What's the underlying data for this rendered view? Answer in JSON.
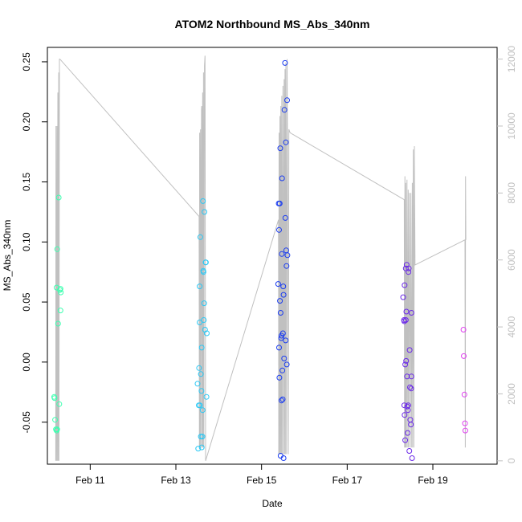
{
  "chart_data": {
    "type": "scatter",
    "title": "ATOM2 Northbound MS_Abs_340nm",
    "xlabel": "Date",
    "ylabel": "MS_Abs_340nm",
    "xlim": [
      "2023-02-10T00:00",
      "2023-02-20T12:00"
    ],
    "ylim": [
      -0.085,
      0.262
    ],
    "y2lim": [
      -100,
      12350
    ],
    "x_ticks": [
      {
        "value": "2023-02-11T00:00",
        "label": "Feb 11"
      },
      {
        "value": "2023-02-13T00:00",
        "label": "Feb 13"
      },
      {
        "value": "2023-02-15T00:00",
        "label": "Feb 15"
      },
      {
        "value": "2023-02-17T00:00",
        "label": "Feb 17"
      },
      {
        "value": "2023-02-19T00:00",
        "label": "Feb 19"
      }
    ],
    "y_ticks": [
      "-0.05",
      "0.00",
      "0.05",
      "0.10",
      "0.15",
      "0.20",
      "0.25"
    ],
    "y2_ticks": [
      "0",
      "2000",
      "4000",
      "6000",
      "8000",
      "10000",
      "12000"
    ],
    "grid": false,
    "secondary_series": {
      "color": "#c0c0c0",
      "points": [
        [
          "2023-02-10T04:40",
          0
        ],
        [
          "2023-02-10T04:50",
          10000
        ],
        [
          "2023-02-10T05:00",
          0
        ],
        [
          "2023-02-10T05:20",
          10000
        ],
        [
          "2023-02-10T05:30",
          0
        ],
        [
          "2023-02-10T05:50",
          11000
        ],
        [
          "2023-02-10T06:00",
          0
        ],
        [
          "2023-02-10T06:20",
          11600
        ],
        [
          "2023-02-10T06:30",
          0
        ],
        [
          "2023-02-10T06:45",
          12000
        ],
        [
          "2023-02-10T07:00",
          12000
        ],
        [
          "2023-02-13T13:00",
          7300
        ],
        [
          "2023-02-13T13:10",
          400
        ],
        [
          "2023-02-13T13:20",
          9800
        ],
        [
          "2023-02-13T13:30",
          400
        ],
        [
          "2023-02-13T13:50",
          9900
        ],
        [
          "2023-02-13T14:00",
          400
        ],
        [
          "2023-02-13T14:20",
          10500
        ],
        [
          "2023-02-13T14:30",
          10600
        ],
        [
          "2023-02-13T14:40",
          400
        ],
        [
          "2023-02-13T15:00",
          11000
        ],
        [
          "2023-02-13T15:10",
          400
        ],
        [
          "2023-02-13T15:30",
          11600
        ],
        [
          "2023-02-13T15:40",
          400
        ],
        [
          "2023-02-13T16:00",
          11800
        ],
        [
          "2023-02-13T16:20",
          12100
        ],
        [
          "2023-02-13T16:40",
          0
        ],
        [
          "2023-02-15T09:30",
          7200
        ],
        [
          "2023-02-15T09:40",
          200
        ],
        [
          "2023-02-15T09:50",
          9800
        ],
        [
          "2023-02-15T10:00",
          200
        ],
        [
          "2023-02-15T10:20",
          10300
        ],
        [
          "2023-02-15T10:30",
          200
        ],
        [
          "2023-02-15T10:50",
          10600
        ],
        [
          "2023-02-15T11:00",
          200
        ],
        [
          "2023-02-15T11:20",
          10900
        ],
        [
          "2023-02-15T11:30",
          200
        ],
        [
          "2023-02-15T12:00",
          11200
        ],
        [
          "2023-02-15T12:10",
          200
        ],
        [
          "2023-02-15T12:40",
          11400
        ],
        [
          "2023-02-15T12:50",
          200
        ],
        [
          "2023-02-15T13:10",
          11700
        ],
        [
          "2023-02-15T13:20",
          200
        ],
        [
          "2023-02-15T13:40",
          11900
        ],
        [
          "2023-02-15T14:00",
          200
        ],
        [
          "2023-02-15T14:20",
          12000
        ],
        [
          "2023-02-15T14:30",
          9800
        ],
        [
          "2023-02-15T15:00",
          200
        ],
        [
          "2023-02-15T15:20",
          9900
        ],
        [
          "2023-02-15T16:00",
          9800
        ],
        [
          "2023-02-18T08:00",
          7800
        ],
        [
          "2023-02-18T08:10",
          400
        ],
        [
          "2023-02-18T08:20",
          8500
        ],
        [
          "2023-02-18T08:30",
          400
        ],
        [
          "2023-02-18T08:50",
          8300
        ],
        [
          "2023-02-18T09:00",
          400
        ],
        [
          "2023-02-18T09:30",
          8400
        ],
        [
          "2023-02-18T09:40",
          400
        ],
        [
          "2023-02-18T10:10",
          8100
        ],
        [
          "2023-02-18T10:20",
          400
        ],
        [
          "2023-02-18T10:50",
          8000
        ],
        [
          "2023-02-18T11:10",
          400
        ],
        [
          "2023-02-18T11:40",
          8000
        ],
        [
          "2023-02-18T12:00",
          400
        ],
        [
          "2023-02-18T12:30",
          8300
        ],
        [
          "2023-02-18T12:40",
          400
        ],
        [
          "2023-02-18T13:00",
          9300
        ],
        [
          "2023-02-18T13:20",
          400
        ],
        [
          "2023-02-18T13:40",
          9400
        ],
        [
          "2023-02-18T14:00",
          5850
        ],
        [
          "2023-02-19T18:00",
          6600
        ],
        [
          "2023-02-19T18:10",
          400
        ],
        [
          "2023-02-19T18:20",
          8500
        ],
        [
          "2023-02-19T18:30",
          6600
        ]
      ]
    },
    "points": [
      {
        "x": "2023-02-10T03:50",
        "y": -0.029,
        "c": "#3dffb0"
      },
      {
        "x": "2023-02-10T04:00",
        "y": -0.03,
        "c": "#3dffb0"
      },
      {
        "x": "2023-02-10T04:20",
        "y": -0.048,
        "c": "#3dffb0"
      },
      {
        "x": "2023-02-10T04:50",
        "y": -0.056,
        "c": "#3dffb0"
      },
      {
        "x": "2023-02-10T05:10",
        "y": -0.057,
        "c": "#3dffb0"
      },
      {
        "x": "2023-02-10T05:30",
        "y": -0.056,
        "c": "#3dffb0"
      },
      {
        "x": "2023-02-10T05:10",
        "y": 0.062,
        "c": "#3dffb0"
      },
      {
        "x": "2023-02-10T05:30",
        "y": 0.094,
        "c": "#3dffb0"
      },
      {
        "x": "2023-02-10T06:00",
        "y": 0.032,
        "c": "#3dffb0"
      },
      {
        "x": "2023-02-10T06:20",
        "y": 0.137,
        "c": "#3dffb0"
      },
      {
        "x": "2023-02-10T06:40",
        "y": -0.035,
        "c": "#3dffb0"
      },
      {
        "x": "2023-02-10T07:00",
        "y": 0.06,
        "c": "#3dffb0"
      },
      {
        "x": "2023-02-10T07:20",
        "y": 0.061,
        "c": "#3dffb0"
      },
      {
        "x": "2023-02-10T07:20",
        "y": 0.043,
        "c": "#3dffb0"
      },
      {
        "x": "2023-02-10T07:30",
        "y": 0.058,
        "c": "#3dffb0"
      },
      {
        "x": "2023-02-13T12:10",
        "y": -0.018,
        "c": "#2ac8f5"
      },
      {
        "x": "2023-02-13T12:30",
        "y": -0.072,
        "c": "#2ac8f5"
      },
      {
        "x": "2023-02-13T12:50",
        "y": -0.036,
        "c": "#2ac8f5"
      },
      {
        "x": "2023-02-13T13:00",
        "y": -0.005,
        "c": "#2ac8f5"
      },
      {
        "x": "2023-02-13T13:20",
        "y": 0.063,
        "c": "#2ac8f5"
      },
      {
        "x": "2023-02-13T13:20",
        "y": 0.033,
        "c": "#2ac8f5"
      },
      {
        "x": "2023-02-13T13:30",
        "y": -0.036,
        "c": "#2ac8f5"
      },
      {
        "x": "2023-02-13T13:40",
        "y": 0.104,
        "c": "#2ac8f5"
      },
      {
        "x": "2023-02-13T14:00",
        "y": -0.01,
        "c": "#2ac8f5"
      },
      {
        "x": "2023-02-13T14:00",
        "y": -0.062,
        "c": "#2ac8f5"
      },
      {
        "x": "2023-02-13T14:20",
        "y": -0.024,
        "c": "#2ac8f5"
      },
      {
        "x": "2023-02-13T14:30",
        "y": 0.012,
        "c": "#2ac8f5"
      },
      {
        "x": "2023-02-13T14:30",
        "y": -0.071,
        "c": "#2ac8f5"
      },
      {
        "x": "2023-02-13T14:50",
        "y": -0.062,
        "c": "#2ac8f5"
      },
      {
        "x": "2023-02-13T15:00",
        "y": -0.04,
        "c": "#2ac8f5"
      },
      {
        "x": "2023-02-13T15:10",
        "y": 0.134,
        "c": "#2ac8f5"
      },
      {
        "x": "2023-02-13T15:20",
        "y": 0.076,
        "c": "#2ac8f5"
      },
      {
        "x": "2023-02-13T15:30",
        "y": 0.075,
        "c": "#2ac8f5"
      },
      {
        "x": "2023-02-13T15:40",
        "y": 0.035,
        "c": "#2ac8f5"
      },
      {
        "x": "2023-02-13T15:50",
        "y": 0.049,
        "c": "#2ac8f5"
      },
      {
        "x": "2023-02-13T16:00",
        "y": 0.125,
        "c": "#2ac8f5"
      },
      {
        "x": "2023-02-13T16:20",
        "y": 0.027,
        "c": "#2ac8f5"
      },
      {
        "x": "2023-02-13T16:40",
        "y": 0.083,
        "c": "#2ac8f5"
      },
      {
        "x": "2023-02-13T16:50",
        "y": 0.083,
        "c": "#2ac8f5"
      },
      {
        "x": "2023-02-13T17:10",
        "y": -0.029,
        "c": "#2ac8f5"
      },
      {
        "x": "2023-02-13T17:20",
        "y": 0.024,
        "c": "#2ac8f5"
      },
      {
        "x": "2023-02-15T09:20",
        "y": 0.065,
        "c": "#1a3cf0"
      },
      {
        "x": "2023-02-15T09:40",
        "y": 0.132,
        "c": "#1a3cf0"
      },
      {
        "x": "2023-02-15T09:50",
        "y": 0.11,
        "c": "#1a3cf0"
      },
      {
        "x": "2023-02-15T09:50",
        "y": 0.012,
        "c": "#1a3cf0"
      },
      {
        "x": "2023-02-15T10:00",
        "y": -0.013,
        "c": "#1a3cf0"
      },
      {
        "x": "2023-02-15T10:10",
        "y": 0.132,
        "c": "#1a3cf0"
      },
      {
        "x": "2023-02-15T10:20",
        "y": 0.051,
        "c": "#1a3cf0"
      },
      {
        "x": "2023-02-15T10:30",
        "y": 0.178,
        "c": "#1a3cf0"
      },
      {
        "x": "2023-02-15T10:40",
        "y": 0.041,
        "c": "#1a3cf0"
      },
      {
        "x": "2023-02-15T10:40",
        "y": -0.078,
        "c": "#1a3cf0"
      },
      {
        "x": "2023-02-15T11:00",
        "y": 0.02,
        "c": "#1a3cf0"
      },
      {
        "x": "2023-02-15T11:10",
        "y": 0.022,
        "c": "#1a3cf0"
      },
      {
        "x": "2023-02-15T11:10",
        "y": -0.032,
        "c": "#1a3cf0"
      },
      {
        "x": "2023-02-15T11:20",
        "y": 0.09,
        "c": "#1a3cf0"
      },
      {
        "x": "2023-02-15T11:30",
        "y": 0.153,
        "c": "#1a3cf0"
      },
      {
        "x": "2023-02-15T11:40",
        "y": -0.007,
        "c": "#1a3cf0"
      },
      {
        "x": "2023-02-15T11:50",
        "y": -0.031,
        "c": "#1a3cf0"
      },
      {
        "x": "2023-02-15T12:00",
        "y": 0.024,
        "c": "#1a3cf0"
      },
      {
        "x": "2023-02-15T12:10",
        "y": 0.063,
        "c": "#1a3cf0"
      },
      {
        "x": "2023-02-15T12:20",
        "y": 0.056,
        "c": "#1a3cf0"
      },
      {
        "x": "2023-02-15T12:20",
        "y": -0.08,
        "c": "#1a3cf0"
      },
      {
        "x": "2023-02-15T12:40",
        "y": 0.003,
        "c": "#1a3cf0"
      },
      {
        "x": "2023-02-15T12:50",
        "y": 0.21,
        "c": "#1a3cf0"
      },
      {
        "x": "2023-02-15T13:10",
        "y": 0.249,
        "c": "#1a3cf0"
      },
      {
        "x": "2023-02-15T13:20",
        "y": 0.12,
        "c": "#1a3cf0"
      },
      {
        "x": "2023-02-15T13:30",
        "y": 0.018,
        "c": "#1a3cf0"
      },
      {
        "x": "2023-02-15T13:40",
        "y": 0.183,
        "c": "#1a3cf0"
      },
      {
        "x": "2023-02-15T13:50",
        "y": 0.093,
        "c": "#1a3cf0"
      },
      {
        "x": "2023-02-15T14:00",
        "y": 0.08,
        "c": "#1a3cf0"
      },
      {
        "x": "2023-02-15T14:10",
        "y": -0.002,
        "c": "#1a3cf0"
      },
      {
        "x": "2023-02-15T14:20",
        "y": 0.218,
        "c": "#1a3cf0"
      },
      {
        "x": "2023-02-15T14:30",
        "y": 0.089,
        "c": "#1a3cf0"
      },
      {
        "x": "2023-02-18T07:20",
        "y": 0.054,
        "c": "#6a28e8"
      },
      {
        "x": "2023-02-18T07:50",
        "y": 0.035,
        "c": "#6a28e8"
      },
      {
        "x": "2023-02-18T08:00",
        "y": 0.034,
        "c": "#6a28e8"
      },
      {
        "x": "2023-02-18T08:00",
        "y": -0.036,
        "c": "#6a28e8"
      },
      {
        "x": "2023-02-18T08:10",
        "y": -0.044,
        "c": "#6a28e8"
      },
      {
        "x": "2023-02-18T08:10",
        "y": 0.064,
        "c": "#6a28e8"
      },
      {
        "x": "2023-02-18T08:30",
        "y": -0.002,
        "c": "#6a28e8"
      },
      {
        "x": "2023-02-18T08:30",
        "y": -0.065,
        "c": "#6a28e8"
      },
      {
        "x": "2023-02-18T08:50",
        "y": 0.078,
        "c": "#6a28e8"
      },
      {
        "x": "2023-02-18T08:50",
        "y": 0.035,
        "c": "#6a28e8"
      },
      {
        "x": "2023-02-18T09:00",
        "y": 0.001,
        "c": "#6a28e8"
      },
      {
        "x": "2023-02-18T09:10",
        "y": 0.042,
        "c": "#6a28e8"
      },
      {
        "x": "2023-02-18T09:20",
        "y": 0.081,
        "c": "#6a28e8"
      },
      {
        "x": "2023-02-18T09:30",
        "y": -0.012,
        "c": "#6a28e8"
      },
      {
        "x": "2023-02-18T09:40",
        "y": -0.037,
        "c": "#6a28e8"
      },
      {
        "x": "2023-02-18T09:50",
        "y": -0.059,
        "c": "#6a28e8"
      },
      {
        "x": "2023-02-18T10:00",
        "y": -0.04,
        "c": "#6a28e8"
      },
      {
        "x": "2023-02-18T10:10",
        "y": -0.036,
        "c": "#6a28e8"
      },
      {
        "x": "2023-02-18T10:20",
        "y": 0.075,
        "c": "#6a28e8"
      },
      {
        "x": "2023-02-18T10:30",
        "y": 0.078,
        "c": "#6a28e8"
      },
      {
        "x": "2023-02-18T10:50",
        "y": -0.074,
        "c": "#6a28e8"
      },
      {
        "x": "2023-02-18T11:00",
        "y": 0.01,
        "c": "#6a28e8"
      },
      {
        "x": "2023-02-18T11:10",
        "y": -0.021,
        "c": "#6a28e8"
      },
      {
        "x": "2023-02-18T11:20",
        "y": -0.048,
        "c": "#6a28e8"
      },
      {
        "x": "2023-02-18T11:40",
        "y": -0.052,
        "c": "#6a28e8"
      },
      {
        "x": "2023-02-18T11:50",
        "y": -0.022,
        "c": "#6a28e8"
      },
      {
        "x": "2023-02-18T12:00",
        "y": 0.041,
        "c": "#6a28e8"
      },
      {
        "x": "2023-02-18T12:00",
        "y": -0.012,
        "c": "#6a28e8"
      },
      {
        "x": "2023-02-18T12:20",
        "y": -0.08,
        "c": "#6a28e8"
      },
      {
        "x": "2023-02-19T17:10",
        "y": 0.027,
        "c": "#e040f0"
      },
      {
        "x": "2023-02-19T17:20",
        "y": 0.005,
        "c": "#e040f0"
      },
      {
        "x": "2023-02-19T17:40",
        "y": -0.027,
        "c": "#e040f0"
      },
      {
        "x": "2023-02-19T18:00",
        "y": -0.051,
        "c": "#e040f0"
      },
      {
        "x": "2023-02-19T18:10",
        "y": -0.057,
        "c": "#e040f0"
      }
    ]
  }
}
